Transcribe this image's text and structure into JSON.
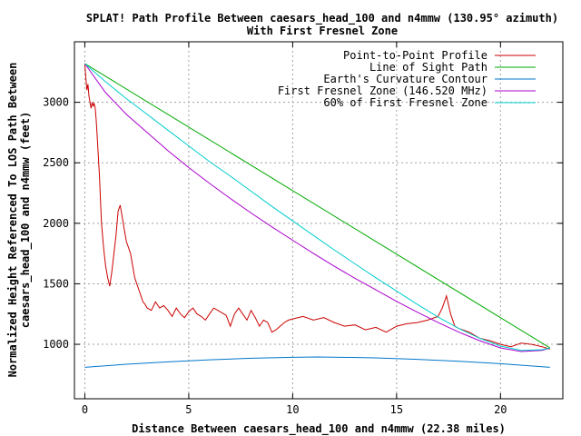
{
  "chart_data": {
    "type": "line",
    "title_line1": "SPLAT! Path Profile Between caesars_head_100 and n4mmw (130.95° azimuth)",
    "title_line2": "With First Fresnel Zone",
    "xlabel": "Distance Between caesars_head_100 and n4mmw (22.38 miles)",
    "ylabel_line1": "Normalized Height Referenced To LOS Path Between",
    "ylabel_line2": "caesars_head_100 and n4mmw (feet)",
    "xlim": [
      -0.5,
      23
    ],
    "ylim": [
      550,
      3500
    ],
    "xticks": [
      0,
      5,
      10,
      15,
      20
    ],
    "yticks": [
      1000,
      1500,
      2000,
      2500,
      3000
    ],
    "grid": true,
    "legend_position": "top-right",
    "series": [
      {
        "name": "Point-to-Point Profile",
        "color": "#cc0000",
        "x": [
          0,
          0.05,
          0.1,
          0.15,
          0.2,
          0.25,
          0.3,
          0.35,
          0.4,
          0.45,
          0.5,
          0.55,
          0.6,
          0.7,
          0.8,
          0.9,
          1.0,
          1.1,
          1.2,
          1.3,
          1.4,
          1.5,
          1.6,
          1.7,
          1.8,
          1.9,
          2.0,
          2.1,
          2.2,
          2.3,
          2.4,
          2.5,
          2.6,
          2.7,
          2.8,
          2.9,
          3.0,
          3.2,
          3.4,
          3.6,
          3.8,
          4.0,
          4.2,
          4.4,
          4.6,
          4.8,
          5.0,
          5.2,
          5.4,
          5.6,
          5.8,
          6.0,
          6.2,
          6.4,
          6.6,
          6.8,
          7.0,
          7.2,
          7.4,
          7.6,
          7.8,
          8.0,
          8.2,
          8.4,
          8.6,
          8.8,
          9.0,
          9.2,
          9.4,
          9.6,
          9.8,
          10.0,
          10.5,
          11.0,
          11.5,
          12.0,
          12.5,
          13.0,
          13.5,
          14.0,
          14.5,
          15.0,
          15.5,
          16.0,
          16.5,
          17.0,
          17.2,
          17.4,
          17.6,
          17.8,
          18.0,
          18.5,
          19.0,
          19.5,
          20.0,
          20.5,
          21.0,
          21.5,
          22.0,
          22.38
        ],
        "y": [
          3320,
          3200,
          3100,
          3150,
          3050,
          3000,
          2950,
          3000,
          2970,
          2990,
          2950,
          2850,
          2700,
          2400,
          2000,
          1800,
          1650,
          1550,
          1480,
          1600,
          1750,
          1900,
          2100,
          2150,
          2050,
          1950,
          1850,
          1800,
          1750,
          1650,
          1550,
          1500,
          1450,
          1400,
          1350,
          1330,
          1300,
          1280,
          1350,
          1300,
          1320,
          1280,
          1230,
          1300,
          1250,
          1220,
          1270,
          1300,
          1250,
          1230,
          1200,
          1250,
          1300,
          1280,
          1260,
          1240,
          1150,
          1250,
          1300,
          1250,
          1200,
          1280,
          1220,
          1150,
          1200,
          1180,
          1100,
          1120,
          1150,
          1180,
          1200,
          1210,
          1230,
          1200,
          1220,
          1180,
          1150,
          1160,
          1120,
          1140,
          1100,
          1150,
          1170,
          1180,
          1200,
          1230,
          1300,
          1400,
          1250,
          1150,
          1130,
          1100,
          1050,
          1030,
          1000,
          980,
          1010,
          1000,
          980,
          960
        ]
      },
      {
        "name": "Line of Sight Path",
        "color": "#00aa00",
        "x": [
          0,
          22.38
        ],
        "y": [
          3320,
          970
        ]
      },
      {
        "name": "Earth's Curvature Contour",
        "color": "#0077cc",
        "x": [
          0,
          2,
          4,
          6,
          8,
          10,
          11.19,
          12,
          14,
          16,
          18,
          20,
          22.38
        ],
        "y": [
          810,
          835,
          855,
          872,
          885,
          892,
          895,
          894,
          888,
          876,
          860,
          840,
          810
        ]
      },
      {
        "name": "First Fresnel Zone (146.520 MHz)",
        "color": "#aa00cc",
        "x": [
          0,
          1,
          2,
          3,
          4,
          5,
          6,
          7,
          8,
          9,
          10,
          11,
          12,
          13,
          14,
          15,
          16,
          17,
          18,
          19,
          20,
          21,
          22,
          22.38
        ],
        "y": [
          3320,
          3080,
          2900,
          2750,
          2600,
          2460,
          2330,
          2205,
          2085,
          1970,
          1860,
          1750,
          1645,
          1545,
          1450,
          1355,
          1265,
          1180,
          1100,
          1030,
          970,
          940,
          950,
          970
        ]
      },
      {
        "name": "60% of First Fresnel Zone",
        "color": "#00cccc",
        "x": [
          0,
          1,
          2,
          3,
          4,
          5,
          6,
          7,
          8,
          9,
          10,
          11,
          12,
          13,
          14,
          15,
          16,
          17,
          18,
          19,
          20,
          21,
          22,
          22.38
        ],
        "y": [
          3320,
          3170,
          3030,
          2900,
          2770,
          2640,
          2510,
          2390,
          2265,
          2140,
          2020,
          1900,
          1780,
          1665,
          1550,
          1440,
          1330,
          1225,
          1130,
          1050,
          985,
          950,
          955,
          970
        ]
      }
    ]
  }
}
